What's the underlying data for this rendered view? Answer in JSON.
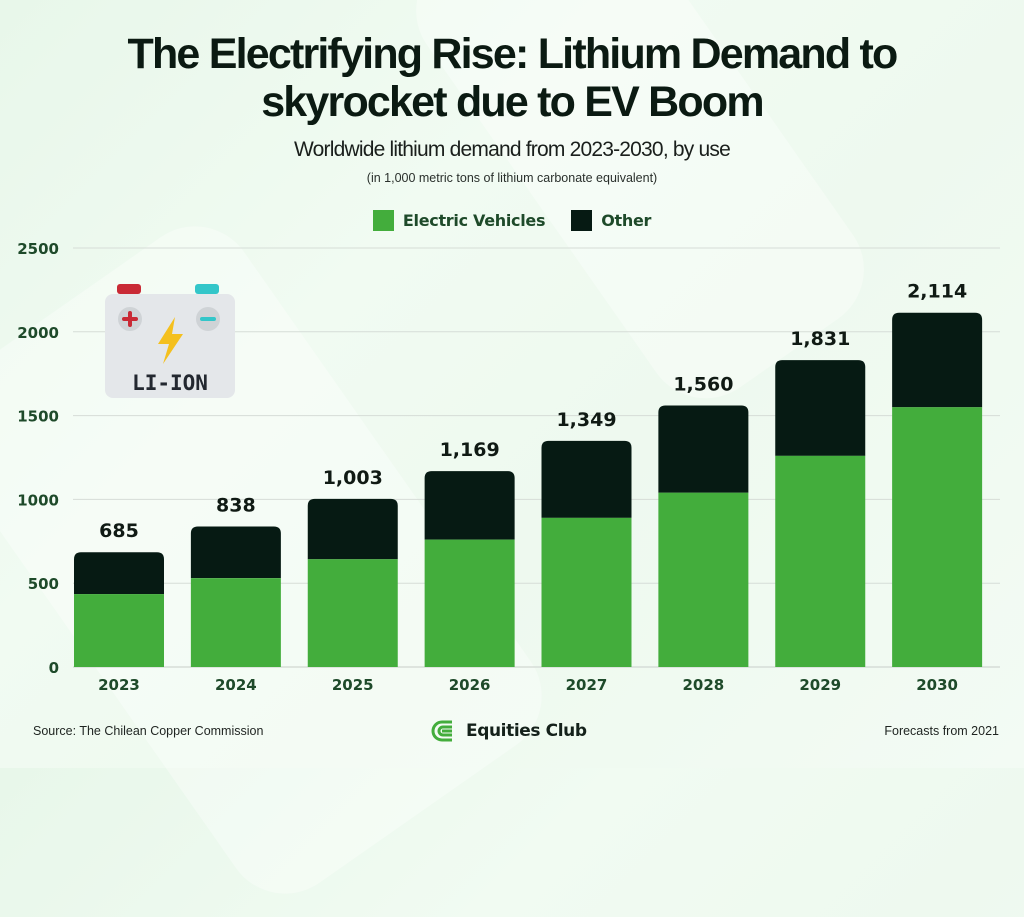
{
  "header": {
    "title_line1": "The Electrifying Rise: Lithium Demand to",
    "title_line2": "skyrocket due to EV Boom",
    "subtitle": "Worldwide lithium demand from 2023-2030, by use",
    "units": "(in 1,000 metric tons of lithium carbonate equivalent)"
  },
  "battery_icon": {
    "label": "LI-ION",
    "icon": "battery-icon"
  },
  "colors": {
    "ev": "#43ad3c",
    "other": "#061a13",
    "axis_text": "#1e4a2a",
    "grid": "#d6ddd7"
  },
  "chart_data": {
    "type": "bar",
    "stacked": true,
    "title": "The Electrifying Rise: Lithium Demand to skyrocket due to EV Boom",
    "subtitle": "Worldwide lithium demand from 2023-2030, by use",
    "xlabel": "",
    "ylabel": "in 1,000 metric tons of lithium carbonate equivalent",
    "categories": [
      "2023",
      "2024",
      "2025",
      "2026",
      "2027",
      "2028",
      "2029",
      "2030"
    ],
    "series": [
      {
        "name": "Electric Vehicles",
        "values": [
          435,
          530,
          643,
          760,
          890,
          1040,
          1260,
          1550
        ]
      },
      {
        "name": "Other",
        "values": [
          250,
          308,
          360,
          409,
          459,
          520,
          571,
          564
        ]
      }
    ],
    "totals": [
      685,
      838,
      1003,
      1169,
      1349,
      1560,
      1831,
      2114
    ],
    "total_labels": [
      "685",
      "838",
      "1,003",
      "1,169",
      "1,349",
      "1,560",
      "1,831",
      "2,114"
    ],
    "ylim": [
      0,
      2500
    ],
    "yticks": [
      0,
      500,
      1000,
      1500,
      2000,
      2500
    ],
    "grid": true,
    "legend_position": "top-center"
  },
  "footer": {
    "source": "Source: The Chilean Copper Commission",
    "brand": "Equities Club",
    "note": "Forecasts from 2021"
  }
}
